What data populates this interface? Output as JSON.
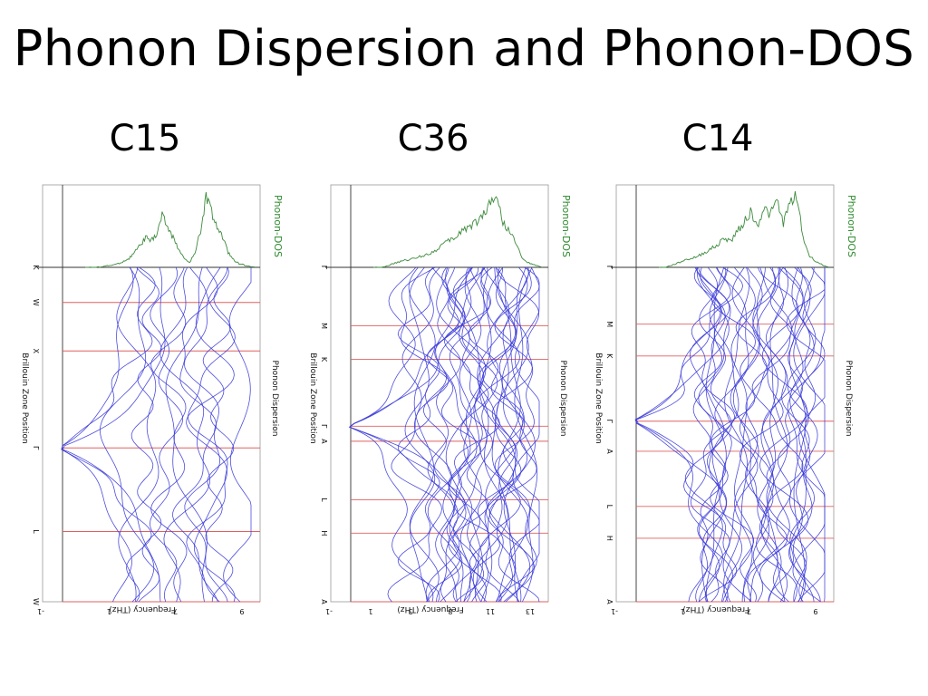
{
  "slide": {
    "title": "Phonon Dispersion and Phonon-DOS"
  },
  "colors": {
    "band": "#3a3ad8",
    "dos": "#3c8a3c",
    "kline": "#e06060",
    "axis": "#333333"
  },
  "chart_data": [
    {
      "type": "line",
      "title": "C15",
      "xlabel": "Frequency (THz)",
      "ylabel": "Brillouin Zone Position",
      "x_ticks": [
        "-1",
        "1",
        "7",
        "9"
      ],
      "kpoints": [
        "K",
        "W",
        "X",
        "Γ",
        "L",
        "W"
      ],
      "side_labels": {
        "dispersion": "Phonon Dispersion",
        "dos": "Phonon-DOS"
      },
      "grid": false,
      "k_frac": [
        0.0,
        0.105,
        0.25,
        0.54,
        0.79,
        1.0
      ],
      "dos": [
        0,
        0,
        0,
        0.01,
        0.02,
        0.03,
        0.05,
        0.08,
        0.12,
        0.2,
        0.3,
        0.4,
        0.35,
        0.45,
        0.7,
        0.55,
        0.4,
        0.25,
        0.12,
        0.06,
        0.2,
        0.5,
        0.95,
        0.75,
        0.55,
        0.4,
        0.2,
        0.1,
        0.05,
        0.03,
        0.01,
        0
      ],
      "band_seed": 15,
      "acoustic_minimum_k": 0.54
    },
    {
      "type": "line",
      "title": "C36",
      "xlabel": "Frequency (THz)",
      "ylabel": "Brillouin Zone Position",
      "x_ticks": [
        "-1",
        "1",
        "3",
        "8",
        "11",
        "13"
      ],
      "kpoints": [
        "Γ",
        "M",
        "K",
        "Γ",
        "A",
        "L",
        "H",
        "A"
      ],
      "side_labels": {
        "dispersion": "Phonon Dispersion",
        "dos": "Phonon-DOS"
      },
      "grid": false,
      "k_frac": [
        0.0,
        0.175,
        0.275,
        0.475,
        0.52,
        0.695,
        0.795,
        1.0
      ],
      "dos": [
        0,
        0,
        0.02,
        0.05,
        0.08,
        0.1,
        0.12,
        0.15,
        0.18,
        0.22,
        0.3,
        0.35,
        0.4,
        0.5,
        0.55,
        0.6,
        0.7,
        0.85,
        1.0,
        0.6,
        0.5,
        0.3,
        0.1,
        0.05,
        0.02,
        0
      ],
      "band_seed": 36,
      "acoustic_minimum_k": 0.475
    },
    {
      "type": "line",
      "title": "C14",
      "xlabel": "Frequency (THz)",
      "ylabel": "Brillouin Zone Position",
      "x_ticks": [
        "-1",
        "1",
        "7",
        "9"
      ],
      "kpoints": [
        "Γ",
        "M",
        "K",
        "Γ",
        "A",
        "L",
        "H",
        "A"
      ],
      "side_labels": {
        "dispersion": "Phonon Dispersion",
        "dos": "Phonon-DOS"
      },
      "grid": false,
      "k_frac": [
        0.0,
        0.17,
        0.265,
        0.46,
        0.55,
        0.715,
        0.81,
        1.0
      ],
      "dos": [
        0,
        0,
        0.03,
        0.06,
        0.1,
        0.12,
        0.15,
        0.2,
        0.25,
        0.3,
        0.4,
        0.35,
        0.5,
        0.6,
        0.75,
        0.55,
        0.8,
        0.7,
        0.9,
        0.6,
        0.85,
        1.0,
        0.4,
        0.15,
        0.08,
        0.03,
        0
      ],
      "band_seed": 14,
      "acoustic_minimum_k": 0.46
    }
  ]
}
